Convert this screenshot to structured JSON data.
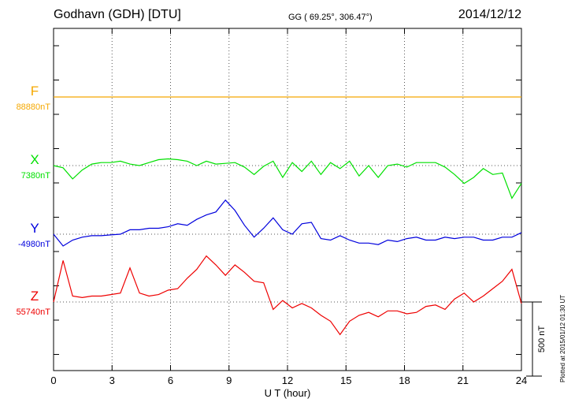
{
  "header": {
    "station": "Godhavn (GDH)  [DTU]",
    "coords": "GG ( 69.25°, 306.47°)",
    "date": "2014/12/12"
  },
  "plotted_note": "Plotted at 2015/01/12 01:30 UT",
  "chart_data": {
    "type": "line",
    "xlabel": "U T (hour)",
    "xlim": [
      0,
      24
    ],
    "xticks": [
      0,
      3,
      6,
      9,
      12,
      15,
      18,
      21,
      24
    ],
    "grid": true,
    "scale_bar": "500 nT",
    "series": [
      {
        "name": "F",
        "baseline": "88880nT",
        "color": "#f5a800",
        "values": [
          0,
          0,
          0,
          0,
          0,
          0,
          0,
          0,
          0,
          0,
          0,
          0,
          0,
          0,
          0,
          0,
          0,
          0,
          0,
          0,
          0,
          0,
          0,
          0,
          0,
          0,
          0,
          0,
          0,
          0,
          0,
          0,
          0,
          0,
          0,
          0,
          0,
          0,
          0,
          0,
          0,
          0,
          0,
          0,
          0,
          0,
          0,
          0,
          0,
          0
        ]
      },
      {
        "name": "X",
        "baseline": "7380nT",
        "color": "#00e000",
        "values": [
          0,
          -15,
          -90,
          -30,
          10,
          20,
          20,
          30,
          10,
          0,
          20,
          40,
          45,
          40,
          30,
          0,
          30,
          10,
          15,
          20,
          -10,
          -60,
          -5,
          30,
          -80,
          20,
          -40,
          30,
          -60,
          20,
          -20,
          30,
          -70,
          0,
          -80,
          0,
          10,
          -10,
          20,
          20,
          20,
          -10,
          -60,
          -120,
          -80,
          -20,
          -60,
          -50,
          -220,
          -120
        ]
      },
      {
        "name": "Y",
        "baseline": "-4980nT",
        "color": "#0000dd",
        "values": [
          0,
          -80,
          -40,
          -20,
          -10,
          -10,
          -5,
          0,
          30,
          30,
          40,
          40,
          50,
          70,
          60,
          100,
          130,
          150,
          230,
          160,
          60,
          -20,
          40,
          110,
          30,
          0,
          70,
          80,
          -30,
          -40,
          -10,
          -40,
          -60,
          -60,
          -70,
          -40,
          -50,
          -30,
          -20,
          -40,
          -40,
          -20,
          -30,
          -20,
          -20,
          -40,
          -40,
          -20,
          -20,
          10
        ]
      },
      {
        "name": "Z",
        "baseline": "55740nT",
        "color": "#ee0000",
        "values": [
          0,
          280,
          40,
          30,
          40,
          40,
          50,
          60,
          230,
          60,
          40,
          50,
          80,
          90,
          160,
          220,
          310,
          250,
          180,
          250,
          200,
          140,
          130,
          -50,
          10,
          -40,
          -10,
          -40,
          -90,
          -130,
          -220,
          -130,
          -90,
          -70,
          -100,
          -60,
          -60,
          -80,
          -70,
          -30,
          -20,
          -50,
          20,
          60,
          0,
          40,
          90,
          140,
          220,
          -10
        ]
      }
    ]
  }
}
